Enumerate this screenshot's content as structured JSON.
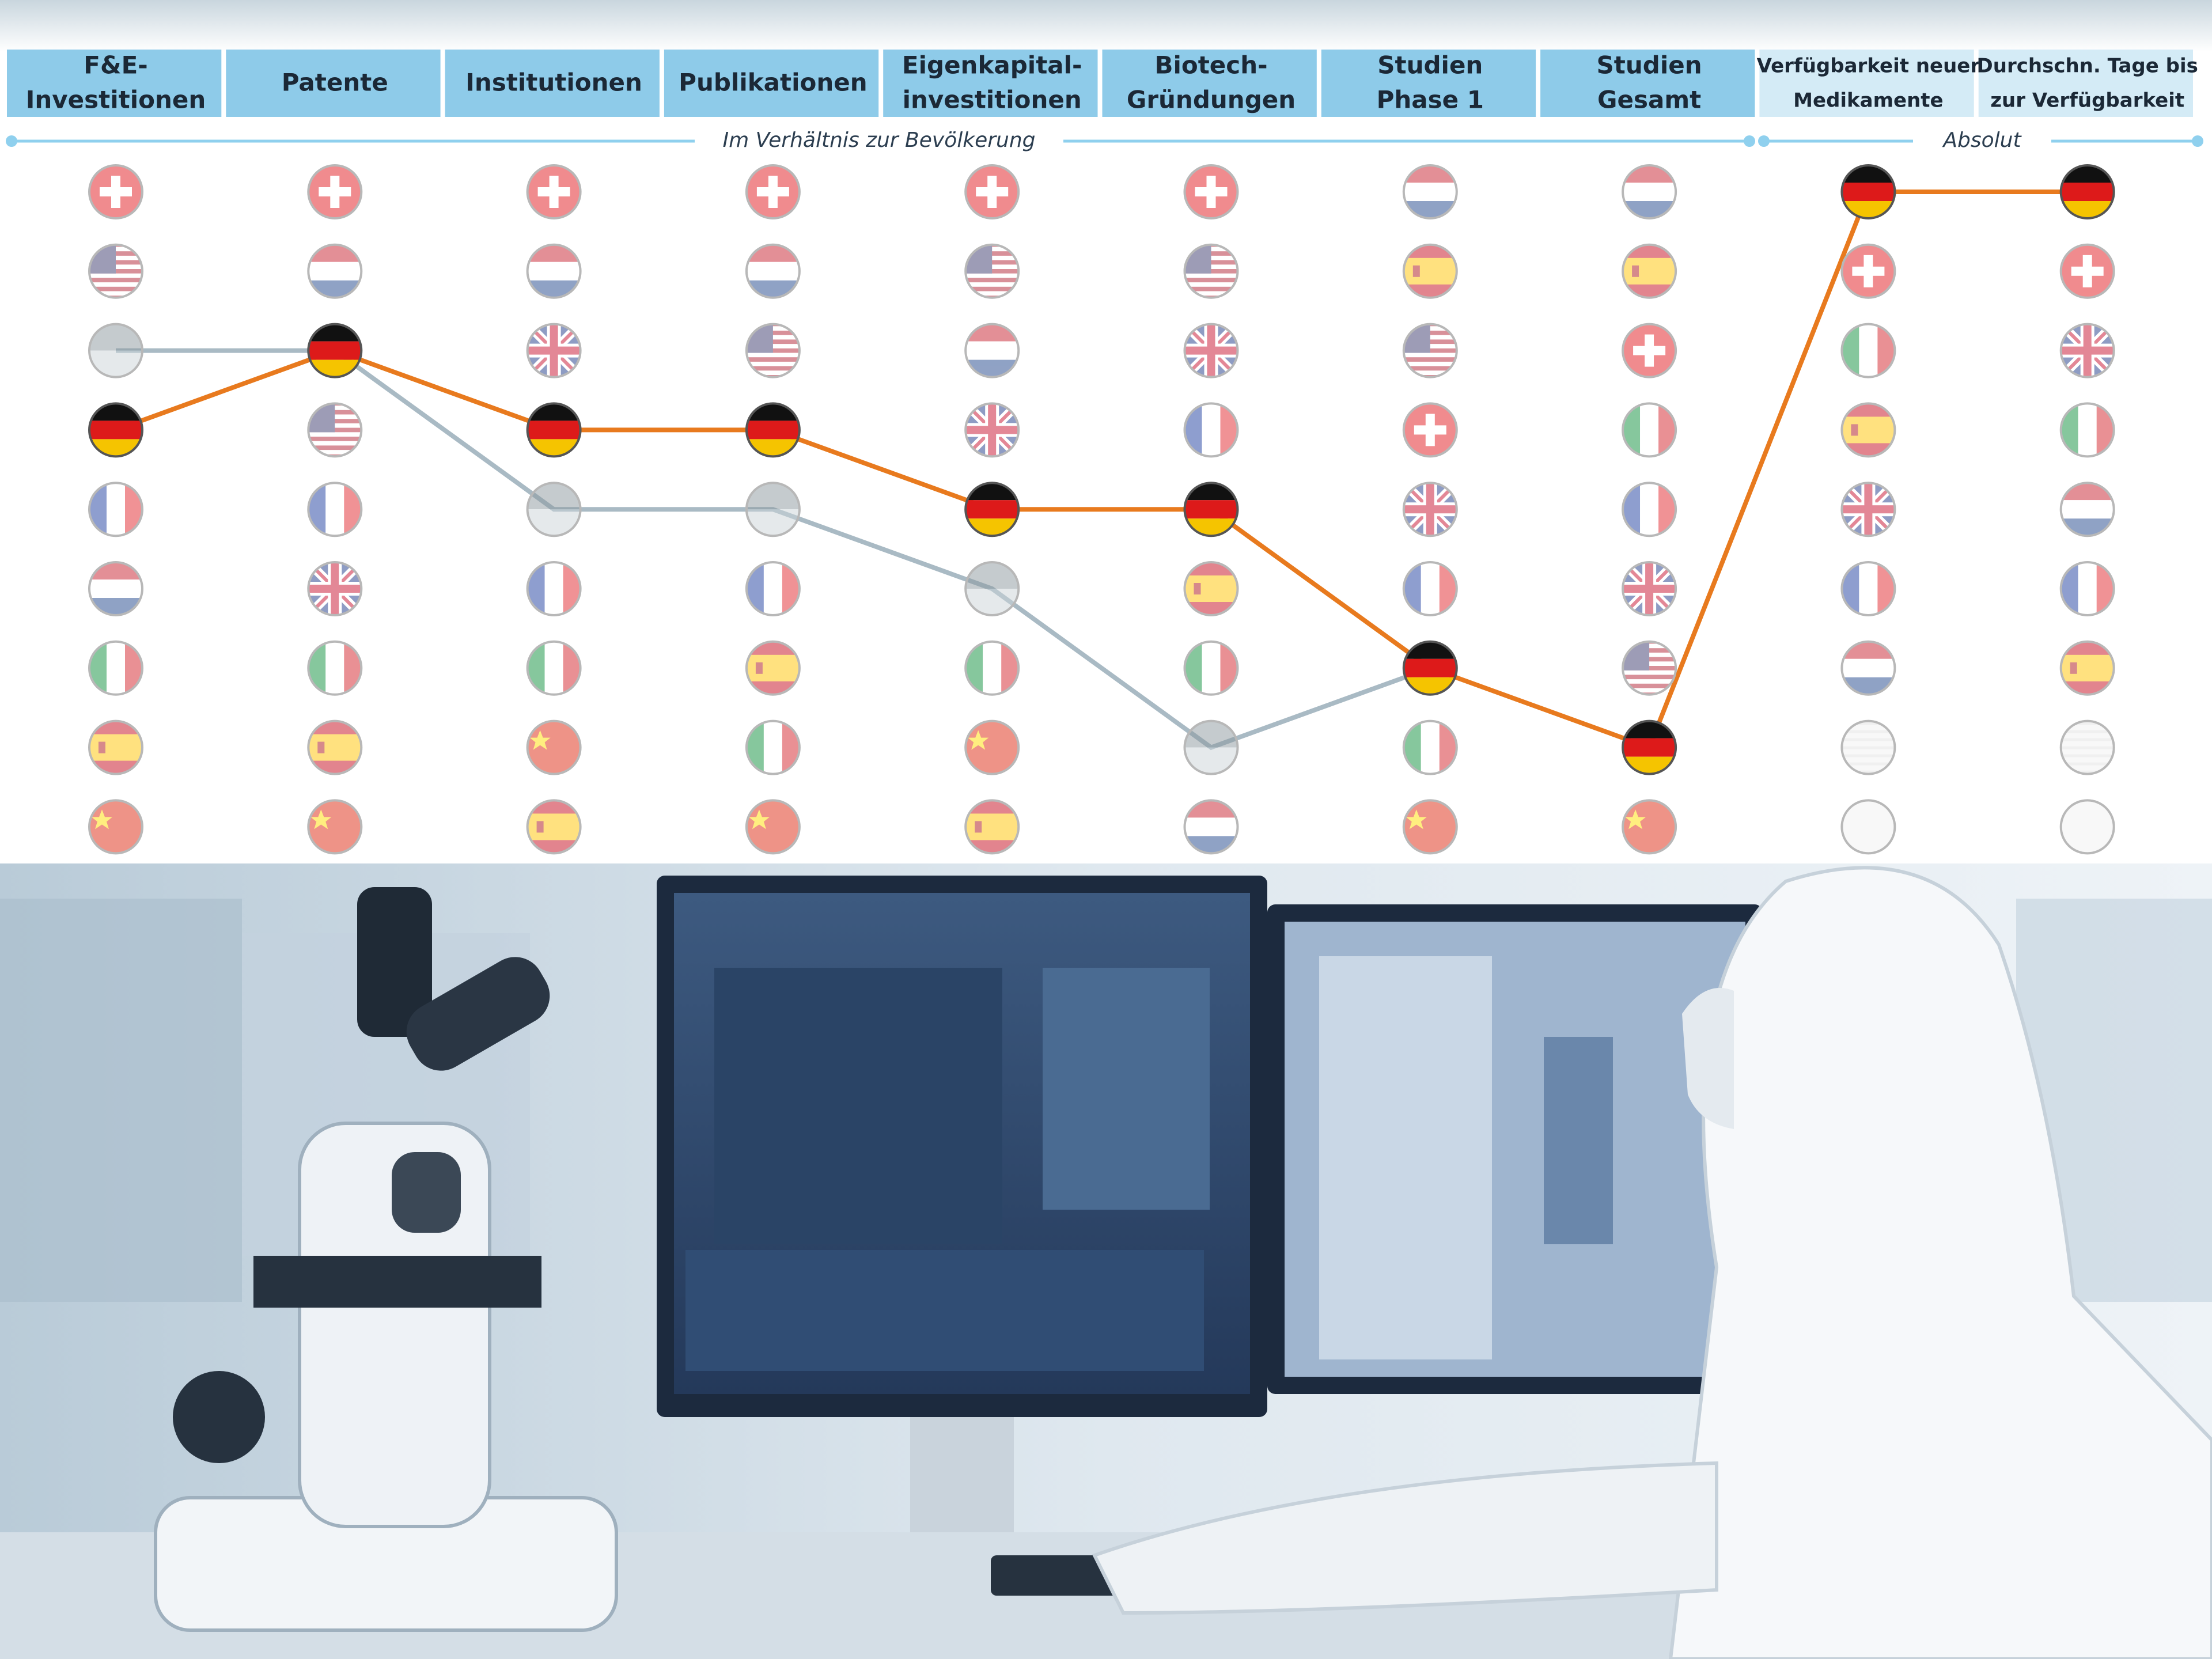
{
  "columns": [
    {
      "lines": [
        "F&E-",
        "Investitionen"
      ]
    },
    {
      "lines": [
        "Patente"
      ]
    },
    {
      "lines": [
        "Institutionen"
      ]
    },
    {
      "lines": [
        "Publikationen"
      ]
    },
    {
      "lines": [
        "Eigenkapital-",
        "investitionen"
      ]
    },
    {
      "lines": [
        "Biotech-",
        "Gründungen"
      ]
    },
    {
      "lines": [
        "Studien",
        "Phase 1"
      ]
    },
    {
      "lines": [
        "Studien",
        "Gesamt"
      ]
    },
    {
      "lines": [
        "Verfügbarkeit neuer",
        "Medikamente"
      ]
    },
    {
      "lines": [
        "Durchschn. Tage bis",
        "zur Verfügbarkeit"
      ]
    }
  ],
  "sections": [
    {
      "label": "Im Verhältnis zur Bevölkerung"
    },
    {
      "label": "Absolut"
    }
  ]
}
